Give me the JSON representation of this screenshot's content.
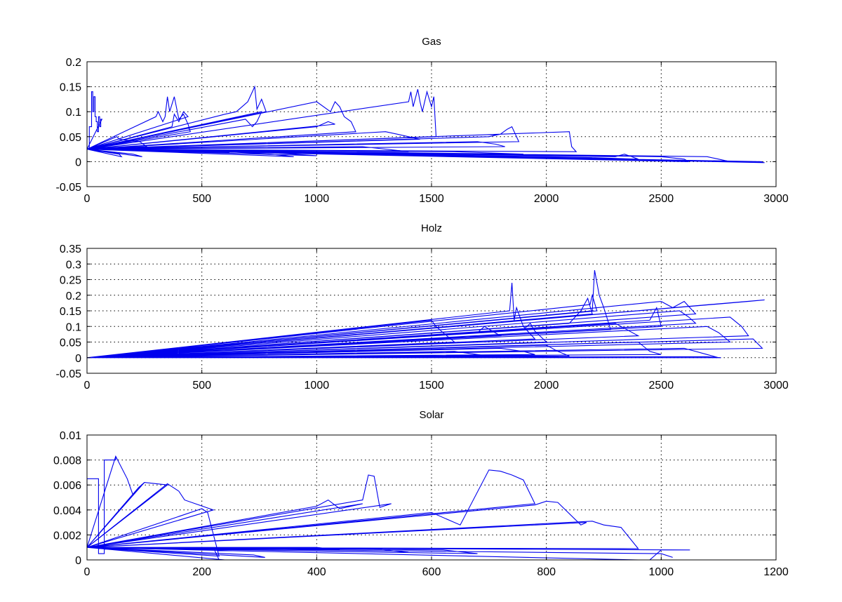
{
  "colors": {
    "series": "#0000ee",
    "axis": "#000000",
    "background": "#ffffff"
  },
  "chart_data": [
    {
      "type": "line",
      "title": "Gas",
      "xlim": [
        0,
        3000
      ],
      "ylim": [
        -0.05,
        0.2
      ],
      "xticks": [
        0,
        500,
        1000,
        1500,
        2000,
        2500,
        3000
      ],
      "yticks": [
        -0.05,
        0,
        0.05,
        0.1,
        0.15,
        0.2
      ],
      "xtick_labels": [
        "0",
        "500",
        "1000",
        "1500",
        "2000",
        "2500",
        "3000"
      ],
      "ytick_labels": [
        "-0.05",
        "0",
        "0.05",
        "0.1",
        "0.15",
        "0.2"
      ],
      "grid": true,
      "series": [
        {
          "x": [
            0,
            10,
            10,
            20,
            20,
            25,
            25,
            30,
            30,
            35,
            35,
            40,
            40,
            45,
            45,
            50,
            50,
            55,
            55,
            60,
            60,
            65,
            0,
            130,
            130,
            140,
            140,
            230,
            230,
            260,
            0,
            300,
            300,
            310,
            310,
            330,
            330,
            340,
            340,
            350,
            350,
            360,
            360,
            380,
            380,
            400,
            400,
            420,
            420,
            440,
            440,
            450,
            0,
            370,
            370,
            380,
            380,
            400,
            400,
            420,
            420,
            440,
            0,
            600,
            600,
            650,
            650,
            700,
            700,
            730,
            730,
            740,
            740,
            760,
            760,
            780,
            0,
            690,
            690,
            720,
            720,
            740,
            740,
            760,
            0,
            1000,
            1000,
            1060,
            1060,
            1080,
            1080,
            1100,
            1100,
            1120,
            1120,
            1150,
            1150,
            1170,
            0,
            1000,
            1000,
            1050,
            1050,
            1080,
            0,
            1400,
            1400,
            1410,
            1410,
            1420,
            1420,
            1440,
            1440,
            1450,
            1450,
            1460,
            1460,
            1480,
            1480,
            1500,
            1500,
            1510,
            1510,
            1520,
            0,
            1300,
            1300,
            1350,
            1350,
            1400,
            1400,
            1450,
            0,
            1750,
            1750,
            1800,
            1800,
            1830,
            1830,
            1850,
            1850,
            1860,
            1860,
            1880,
            0,
            2100,
            2100,
            2110,
            2110,
            2130,
            0,
            1700,
            1700,
            1780,
            1780,
            1820,
            0,
            2300,
            2300,
            2340,
            2340,
            2400,
            0,
            2500,
            2500,
            2600,
            2600,
            2620,
            0,
            2700,
            2700,
            2750,
            2750,
            2800,
            0,
            2900,
            2900,
            2950,
            0,
            600,
            600,
            800,
            800,
            900,
            0,
            200,
            200,
            240,
            0,
            1200,
            1200,
            1400,
            0,
            2000,
            2000,
            2200,
            0,
            140,
            140,
            150,
            0,
            2800,
            2800,
            2940,
            0,
            2200,
            2200,
            2400,
            0,
            1600,
            1600,
            1900,
            0,
            800,
            800,
            1000,
            0,
            400,
            400,
            620
          ],
          "y": [
            0.025,
            0.025,
            0.07,
            0.07,
            0.14,
            0.14,
            0.1,
            0.1,
            0.13,
            0.13,
            0.09,
            0.09,
            0.08,
            0.08,
            0.06,
            0.06,
            0.09,
            0.09,
            0.07,
            0.07,
            0.085,
            0.085,
            0.025,
            0.05,
            0.05,
            0.045,
            0.045,
            0.04,
            0.04,
            0.03,
            0.025,
            0.09,
            0.09,
            0.1,
            0.1,
            0.08,
            0.08,
            0.09,
            0.09,
            0.13,
            0.13,
            0.1,
            0.1,
            0.13,
            0.13,
            0.085,
            0.085,
            0.095,
            0.095,
            0.075,
            0.075,
            0.06,
            0.025,
            0.07,
            0.07,
            0.095,
            0.095,
            0.08,
            0.08,
            0.1,
            0.1,
            0.09,
            0.025,
            0.095,
            0.095,
            0.1,
            0.1,
            0.12,
            0.12,
            0.15,
            0.15,
            0.105,
            0.105,
            0.125,
            0.125,
            0.1,
            0.025,
            0.085,
            0.085,
            0.07,
            0.07,
            0.08,
            0.08,
            0.1,
            0.025,
            0.12,
            0.12,
            0.1,
            0.1,
            0.12,
            0.12,
            0.11,
            0.11,
            0.09,
            0.09,
            0.08,
            0.08,
            0.06,
            0.025,
            0.07,
            0.07,
            0.08,
            0.08,
            0.075,
            0.025,
            0.12,
            0.12,
            0.14,
            0.14,
            0.11,
            0.11,
            0.145,
            0.145,
            0.12,
            0.12,
            0.1,
            0.1,
            0.14,
            0.14,
            0.11,
            0.11,
            0.13,
            0.13,
            0.05,
            0.025,
            0.06,
            0.06,
            0.055,
            0.055,
            0.05,
            0.05,
            0.045,
            0.025,
            0.05,
            0.05,
            0.055,
            0.055,
            0.065,
            0.065,
            0.07,
            0.07,
            0.06,
            0.06,
            0.04,
            0.025,
            0.06,
            0.06,
            0.03,
            0.03,
            0.02,
            0.025,
            0.04,
            0.04,
            0.035,
            0.035,
            0.03,
            0.025,
            0.01,
            0.01,
            0.015,
            0.015,
            0.005,
            0.025,
            0.01,
            0.01,
            0.005,
            0.005,
            0.0,
            0.025,
            0.01,
            0.01,
            0.005,
            0.005,
            0.0,
            0.025,
            0.0,
            0.0,
            -0.002,
            0.025,
            0.02,
            0.02,
            0.015,
            0.015,
            0.01,
            0.025,
            0.015,
            0.015,
            0.01,
            0.025,
            0.03,
            0.03,
            0.02,
            0.025,
            0.01,
            0.01,
            0.008,
            0.025,
            0.015,
            0.015,
            0.01,
            0.025,
            0.001,
            0.001,
            0.0,
            0.025,
            0.008,
            0.008,
            0.005,
            0.025,
            0.02,
            0.02,
            0.015,
            0.025,
            0.018,
            0.018,
            0.012,
            0.025,
            0.02,
            0.02,
            0.018
          ]
        }
      ]
    },
    {
      "type": "line",
      "title": "Holz",
      "xlim": [
        0,
        3000
      ],
      "ylim": [
        -0.05,
        0.35
      ],
      "xticks": [
        0,
        500,
        1000,
        1500,
        2000,
        2500,
        3000
      ],
      "yticks": [
        -0.05,
        0,
        0.05,
        0.1,
        0.15,
        0.2,
        0.25,
        0.3,
        0.35
      ],
      "xtick_labels": [
        "0",
        "500",
        "1000",
        "1500",
        "2000",
        "2500",
        "3000"
      ],
      "ytick_labels": [
        "-0.05",
        "0",
        "0.05",
        "0.1",
        "0.15",
        "0.2",
        "0.25",
        "0.3",
        "0.35"
      ],
      "grid": true,
      "series": [
        {
          "x": [
            0,
            1500,
            1500,
            1520,
            1520,
            1550,
            1550,
            1600,
            0,
            1700,
            1700,
            1730,
            1730,
            1800,
            0,
            1840,
            1840,
            1850,
            1850,
            1860,
            1860,
            1870,
            1870,
            1900,
            1900,
            1950,
            0,
            1900,
            1900,
            1930,
            1930,
            1950,
            1950,
            2000,
            0,
            2100,
            2100,
            2150,
            2150,
            2180,
            2180,
            2200,
            0,
            2200,
            2200,
            2210,
            2210,
            2230,
            2230,
            2250,
            2250,
            2280,
            0,
            2190,
            2190,
            2200,
            2200,
            2220,
            0,
            2300,
            2300,
            2350,
            2350,
            2400,
            0,
            2450,
            2450,
            2480,
            2480,
            2500,
            0,
            2500,
            2500,
            2550,
            2550,
            2600,
            2600,
            2650,
            0,
            2580,
            2580,
            2620,
            2620,
            2650,
            0,
            2700,
            2700,
            2750,
            2750,
            2800,
            0,
            2800,
            2800,
            2850,
            2850,
            2880,
            0,
            2880,
            2880,
            2950,
            0,
            2900,
            2900,
            2940,
            0,
            1600,
            1600,
            1700,
            1700,
            1750,
            0,
            1800,
            1800,
            1900,
            1900,
            1950,
            0,
            2000,
            2000,
            2050,
            2050,
            2100,
            0,
            2400,
            2400,
            2450,
            2450,
            2500,
            0,
            2600,
            2600,
            2700,
            2700,
            2750,
            0,
            1000,
            1000,
            1600,
            0,
            2000,
            2000,
            2100,
            0,
            2700,
            2700,
            2760
          ],
          "y": [
            0.0,
            0.12,
            0.12,
            0.1,
            0.1,
            0.08,
            0.08,
            0.05,
            0.0,
            0.08,
            0.08,
            0.1,
            0.1,
            0.07,
            0.0,
            0.15,
            0.15,
            0.24,
            0.24,
            0.12,
            0.12,
            0.16,
            0.16,
            0.1,
            0.1,
            0.06,
            0.0,
            0.09,
            0.09,
            0.11,
            0.11,
            0.085,
            0.085,
            0.05,
            0.0,
            0.11,
            0.11,
            0.15,
            0.15,
            0.19,
            0.19,
            0.14,
            0.0,
            0.15,
            0.15,
            0.28,
            0.28,
            0.2,
            0.2,
            0.16,
            0.16,
            0.09,
            0.0,
            0.17,
            0.17,
            0.2,
            0.2,
            0.15,
            0.0,
            0.11,
            0.11,
            0.09,
            0.09,
            0.07,
            0.0,
            0.12,
            0.12,
            0.16,
            0.16,
            0.1,
            0.0,
            0.18,
            0.18,
            0.16,
            0.16,
            0.18,
            0.18,
            0.14,
            0.0,
            0.15,
            0.15,
            0.13,
            0.13,
            0.11,
            0.0,
            0.1,
            0.1,
            0.08,
            0.08,
            0.05,
            0.0,
            0.13,
            0.13,
            0.1,
            0.1,
            0.07,
            0.0,
            0.18,
            0.18,
            0.185,
            0.0,
            0.06,
            0.06,
            0.03,
            0.0,
            0.02,
            0.02,
            0.01,
            0.01,
            0.005,
            0.0,
            0.03,
            0.03,
            0.02,
            0.02,
            0.01,
            0.0,
            0.04,
            0.04,
            0.02,
            0.02,
            0.005,
            0.0,
            0.05,
            0.05,
            0.02,
            0.02,
            0.01,
            0.0,
            0.03,
            0.03,
            0.01,
            0.01,
            0.0,
            0.0,
            0.005,
            0.005,
            0.0,
            0.0,
            0.005,
            0.005,
            0.0,
            0.0,
            0.003,
            0.003,
            0.0
          ]
        }
      ]
    },
    {
      "type": "line",
      "title": "Solar",
      "xlim": [
        0,
        1200
      ],
      "ylim": [
        0,
        0.01
      ],
      "xticks": [
        0,
        200,
        400,
        600,
        800,
        1000,
        1200
      ],
      "yticks": [
        0,
        0.002,
        0.004,
        0.006,
        0.008,
        0.01
      ],
      "xtick_labels": [
        "0",
        "200",
        "400",
        "600",
        "800",
        "1000",
        "1200"
      ],
      "ytick_labels": [
        "0",
        "0.002",
        "0.004",
        "0.006",
        "0.008",
        "0.01"
      ],
      "grid": true,
      "series": [
        {
          "x": [
            0,
            0,
            20,
            20,
            30,
            30,
            50,
            50,
            0,
            50,
            50,
            70,
            70,
            80,
            80,
            100,
            0,
            90,
            90,
            100,
            100,
            140,
            0,
            140,
            140,
            160,
            160,
            170,
            170,
            220,
            0,
            200,
            200,
            210,
            210,
            230,
            0,
            220,
            220,
            230,
            230,
            240,
            0,
            400,
            400,
            420,
            420,
            440,
            440,
            480,
            0,
            480,
            480,
            490,
            490,
            500,
            500,
            510,
            510,
            530,
            0,
            600,
            600,
            650,
            650,
            700,
            700,
            720,
            720,
            740,
            740,
            760,
            760,
            780,
            0,
            780,
            780,
            800,
            800,
            820,
            820,
            860,
            860,
            870,
            0,
            880,
            880,
            900,
            900,
            930,
            930,
            960,
            0,
            960,
            960,
            980,
            980,
            1000,
            1000,
            1050,
            0,
            290,
            290,
            310,
            0,
            400,
            400,
            440,
            0,
            500,
            500,
            560,
            0,
            620,
            620,
            680,
            0,
            1000,
            1000,
            1020
          ],
          "y": [
            0.001,
            0.0065,
            0.0065,
            0.0005,
            0.0005,
            0.008,
            0.008,
            0.0083,
            0.001,
            0.0083,
            0.0083,
            0.0065,
            0.0065,
            0.0052,
            0.0052,
            0.0062,
            0.001,
            0.0058,
            0.0058,
            0.0062,
            0.0062,
            0.006,
            0.001,
            0.0061,
            0.0061,
            0.0055,
            0.0055,
            0.0048,
            0.0048,
            0.004,
            0.001,
            0.0041,
            0.0041,
            0.0038,
            0.0038,
            0.0003,
            0.001,
            0.001,
            0.001,
            0.0,
            0.0,
            0.0,
            0.001,
            0.0043,
            0.0043,
            0.0048,
            0.0048,
            0.0041,
            0.0041,
            0.0045,
            0.001,
            0.0048,
            0.0048,
            0.0068,
            0.0068,
            0.0067,
            0.0067,
            0.0042,
            0.0042,
            0.0045,
            0.001,
            0.0038,
            0.0038,
            0.0028,
            0.0028,
            0.0072,
            0.0072,
            0.0071,
            0.0071,
            0.0068,
            0.0068,
            0.0064,
            0.0064,
            0.0045,
            0.001,
            0.0044,
            0.0044,
            0.0047,
            0.0047,
            0.0046,
            0.0046,
            0.0028,
            0.0028,
            0.003,
            0.001,
            0.0031,
            0.0031,
            0.0028,
            0.0028,
            0.0026,
            0.0026,
            0.0009,
            0.001,
            0.0,
            0.0,
            0.0,
            0.0,
            0.0008,
            0.0008,
            0.0008,
            0.001,
            0.0004,
            0.0004,
            0.0002,
            0.001,
            0.001,
            0.001,
            0.0008,
            0.001,
            0.0009,
            0.0009,
            0.0006,
            0.001,
            0.0008,
            0.0008,
            0.0005,
            0.001,
            0.0005,
            0.0005,
            0.0002
          ]
        }
      ]
    }
  ]
}
